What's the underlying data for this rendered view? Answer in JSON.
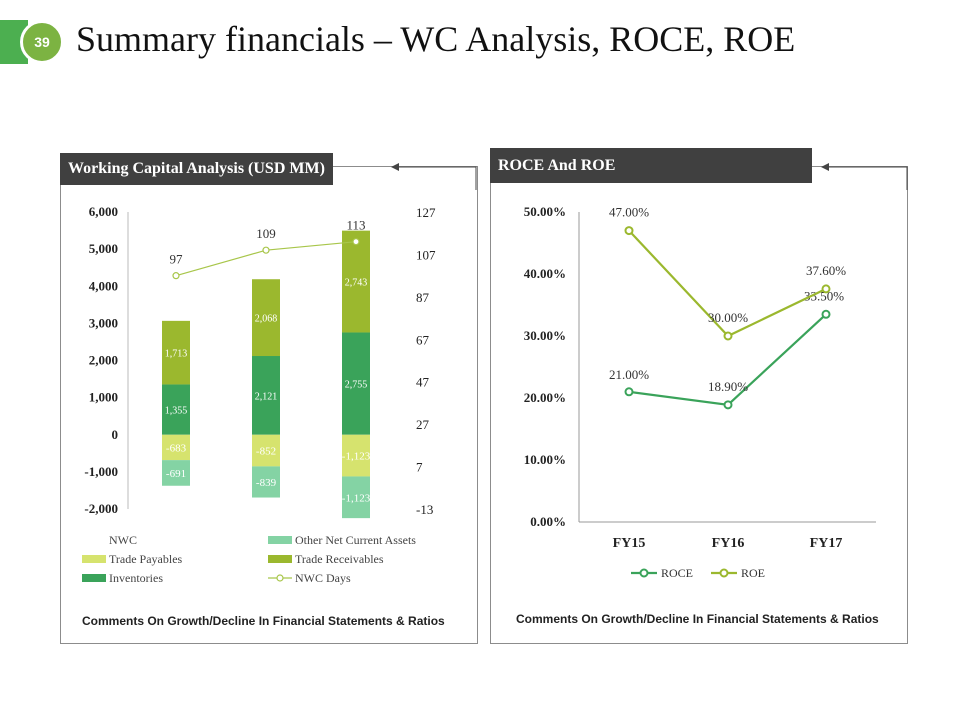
{
  "page": {
    "number": "39",
    "title": "Summary financials – WC Analysis, ROCE, ROE"
  },
  "left_panel": {
    "title": "Working Capital Analysis (USD MM)",
    "comments": "Comments On Growth/Decline In Financial Statements & Ratios"
  },
  "right_panel": {
    "title": "ROCE And ROE",
    "comments": "Comments On Growth/Decline In Financial Statements & Ratios"
  },
  "colors": {
    "inventories": "#3aa35a",
    "trade_receivables": "#9bb82e",
    "trade_payables": "#d6e36e",
    "other_net_current_assets": "#84d3a4",
    "nwc_days": "#a8c64a",
    "roce": "#3aa35a",
    "roe": "#9bb82e",
    "header_bg": "#404040"
  },
  "chart_data": [
    {
      "type": "bar",
      "stacked": true,
      "title": "Working Capital Analysis (USD MM)",
      "categories": [
        "",
        "",
        ""
      ],
      "ylim": [
        -2000,
        6000
      ],
      "yticks": [
        "6,000",
        "5,000",
        "4,000",
        "3,000",
        "2,000",
        "1,000",
        "0",
        "-1,000",
        "-2,000"
      ],
      "ytick_values": [
        6000,
        5000,
        4000,
        3000,
        2000,
        1000,
        0,
        -1000,
        -2000
      ],
      "y2lim": [
        -13,
        127
      ],
      "y2ticks": [
        "127",
        "107",
        "87",
        "67",
        "47",
        "27",
        "7",
        "-13"
      ],
      "y2tick_values": [
        127,
        107,
        87,
        67,
        47,
        27,
        7,
        -13
      ],
      "series": [
        {
          "name": "Inventories",
          "key": "inventories",
          "values": [
            1355,
            2121,
            2755
          ],
          "labels": [
            "1,355",
            "2,121",
            "2,755"
          ]
        },
        {
          "name": "Trade Receivables",
          "key": "trade_receivables",
          "values": [
            1713,
            2068,
            2743
          ],
          "labels": [
            "1,713",
            "2,068",
            "2,743"
          ]
        },
        {
          "name": "Trade Payables",
          "key": "trade_payables",
          "values": [
            -683,
            -852,
            -1123
          ],
          "labels": [
            "-683",
            "-852",
            "-1,123"
          ]
        },
        {
          "name": "Other Net Current Assets",
          "key": "other_net_current_assets",
          "values": [
            -691,
            -839,
            -1123
          ],
          "labels": [
            "-691",
            "-839",
            "-1,123"
          ]
        }
      ],
      "line_series": {
        "name": "NWC Days",
        "key": "nwc_days",
        "axis": "secondary",
        "values": [
          97,
          109,
          113
        ],
        "labels": [
          "97",
          "109",
          "113"
        ]
      },
      "legend": [
        {
          "name": "NWC",
          "swatch": "none"
        },
        {
          "name": "Other Net Current Assets",
          "swatch": "other_net_current_assets"
        },
        {
          "name": "Trade Payables",
          "swatch": "trade_payables"
        },
        {
          "name": "Trade Receivables",
          "swatch": "trade_receivables"
        },
        {
          "name": "Inventories",
          "swatch": "inventories"
        },
        {
          "name": "NWC Days",
          "swatch": "line"
        }
      ],
      "legend_position": "bottom"
    },
    {
      "type": "line",
      "title": "ROCE And ROE",
      "categories": [
        "FY15",
        "FY16",
        "FY17"
      ],
      "ylim": [
        0,
        50
      ],
      "yticks": [
        "50.00%",
        "40.00%",
        "30.00%",
        "20.00%",
        "10.00%",
        "0.00%"
      ],
      "ytick_values": [
        50,
        40,
        30,
        20,
        10,
        0
      ],
      "series": [
        {
          "name": "ROCE",
          "key": "roce",
          "values": [
            21.0,
            18.9,
            33.5
          ],
          "labels": [
            "21.00%",
            "18.90%",
            "33.50%"
          ]
        },
        {
          "name": "ROE",
          "key": "roe",
          "values": [
            47.0,
            30.0,
            37.6
          ],
          "labels": [
            "47.00%",
            "30.00%",
            "37.60%"
          ]
        }
      ],
      "legend": [
        "ROCE",
        "ROE"
      ],
      "legend_position": "bottom"
    }
  ]
}
